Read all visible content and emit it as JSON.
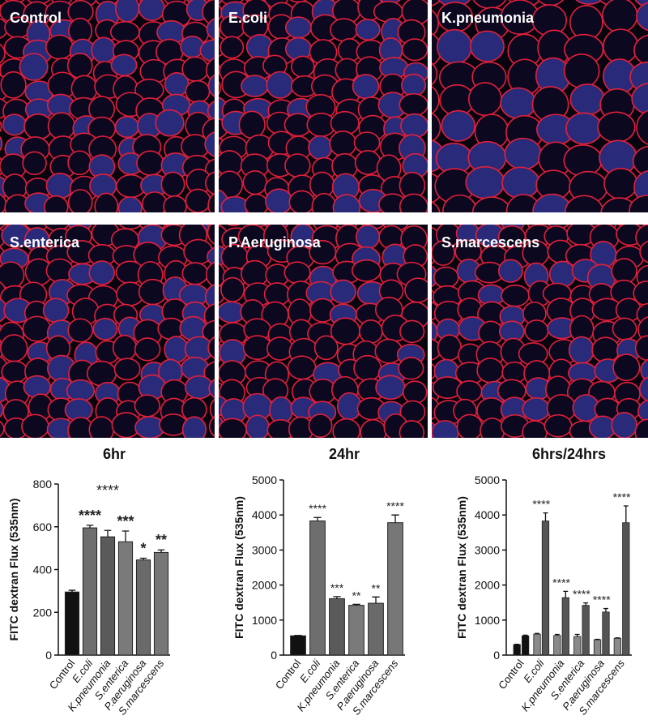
{
  "panels": [
    "Control",
    "E.coli",
    "K.pneumonia",
    "S.enterica",
    "P.Aeruginosa",
    "S.marcescens"
  ],
  "chart_data": [
    {
      "type": "bar",
      "title": "6hr",
      "ylabel": "FITC dextran Flux (535nm)",
      "categories": [
        "Control",
        "E.coli",
        "K.pneumonia",
        "S.enterica",
        "P.aeruginosa",
        "S.marcescens"
      ],
      "values": [
        295,
        595,
        553,
        530,
        445,
        480
      ],
      "errors": [
        8,
        12,
        30,
        50,
        8,
        12
      ],
      "annotations": [
        null,
        "****",
        "****",
        "***",
        "*",
        "**"
      ],
      "colors": [
        "#111111",
        "#6e6e6e",
        "#5a5a5a",
        "#7a7a7a",
        "#6a6a6a",
        "#777777"
      ],
      "ylim": [
        0,
        800
      ],
      "yticks": [
        0,
        200,
        400,
        600,
        800
      ]
    },
    {
      "type": "bar",
      "title": "24hr",
      "ylabel": "FITC dextran Flux (535nm)",
      "categories": [
        "Control",
        "E.coli",
        "K.pneumonia",
        "S.enterica",
        "P.aeruginosa",
        "S.marcescens"
      ],
      "values": [
        550,
        3830,
        1610,
        1420,
        1480,
        3780
      ],
      "errors": [
        10,
        100,
        60,
        30,
        180,
        220
      ],
      "annotations": [
        null,
        "****",
        "***",
        "**",
        "**",
        "****"
      ],
      "colors": [
        "#111111",
        "#6e6e6e",
        "#5a5a5a",
        "#7a7a7a",
        "#6a6a6a",
        "#777777"
      ],
      "ylim": [
        0,
        5000
      ],
      "yticks": [
        0,
        1000,
        2000,
        3000,
        4000,
        5000
      ]
    },
    {
      "type": "grouped_bar",
      "title": "6hrs/24hrs",
      "ylabel": "FITC dextran Flux (535nm)",
      "categories": [
        "Control",
        "E.coli",
        "K.pneumonia",
        "S.enterica",
        "P.aeruginosa",
        "S.marcescens"
      ],
      "series": [
        {
          "color": "#8a8a8a",
          "values": [
            300,
            600,
            560,
            530,
            440,
            480
          ],
          "errors": [
            10,
            20,
            30,
            60,
            10,
            10
          ]
        },
        {
          "color": "#555555",
          "values": [
            550,
            3830,
            1640,
            1420,
            1230,
            3780
          ],
          "errors": [
            20,
            230,
            180,
            70,
            100,
            480
          ]
        }
      ],
      "control_color": "#111111",
      "annotations": [
        null,
        "****",
        "****",
        "****",
        "****",
        "****"
      ],
      "ylim": [
        0,
        5000
      ],
      "yticks": [
        0,
        1000,
        2000,
        3000,
        4000,
        5000
      ]
    }
  ]
}
